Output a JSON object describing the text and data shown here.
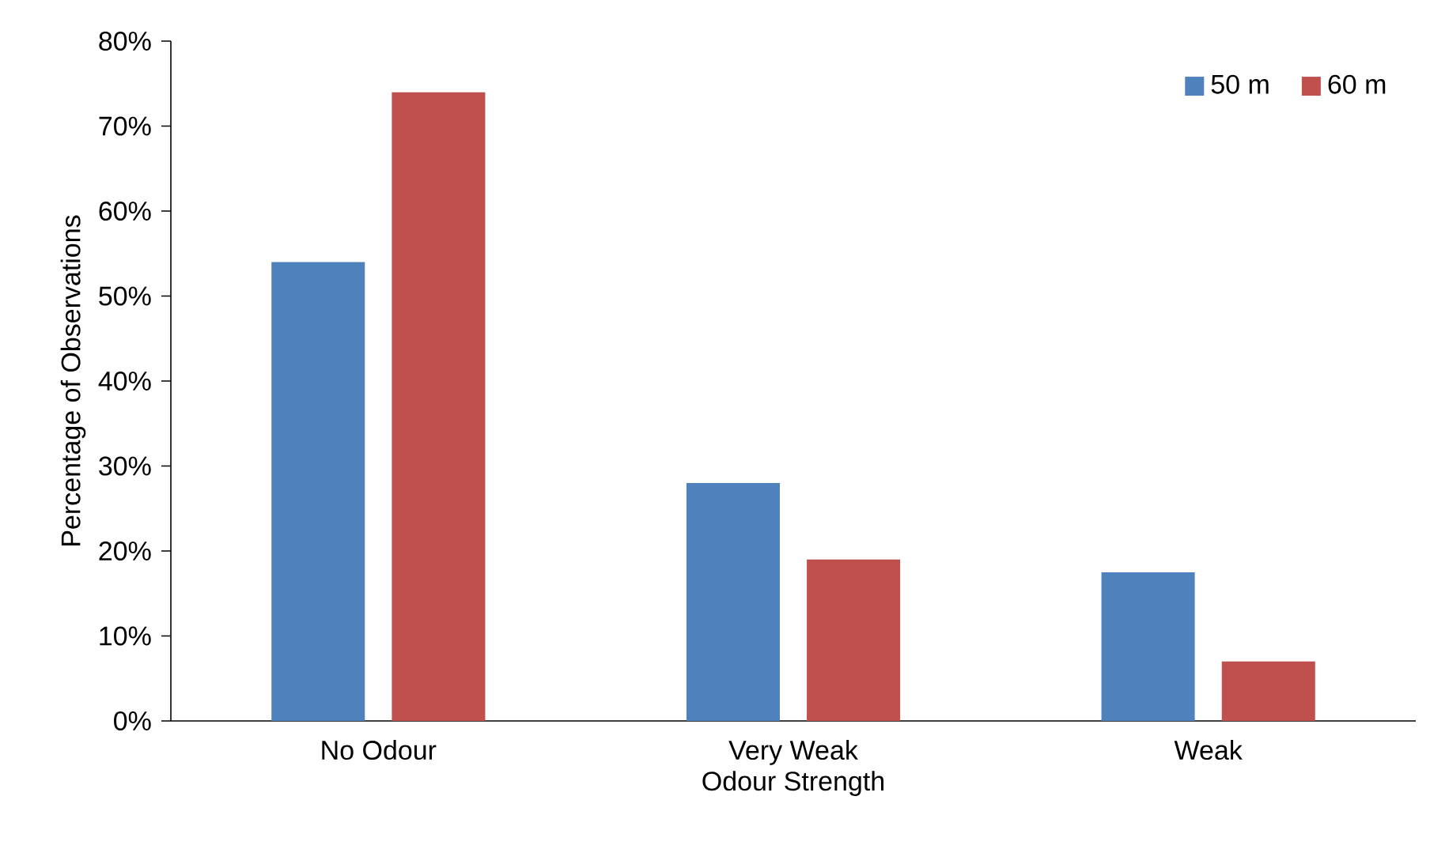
{
  "chart_data": {
    "type": "bar",
    "xlabel": "Odour Strength",
    "ylabel": "Percentage of Observations",
    "categories": [
      "No Odour",
      "Very Weak",
      "Weak"
    ],
    "series": [
      {
        "name": "50 m",
        "color": "#4f81bd",
        "values": [
          54,
          28,
          17.5
        ]
      },
      {
        "name": "60 m",
        "color": "#c0504d",
        "values": [
          74,
          19,
          7
        ]
      }
    ],
    "ylim": [
      0,
      80
    ],
    "yticks": [
      {
        "value": 0,
        "label": "0%"
      },
      {
        "value": 10,
        "label": "10%"
      },
      {
        "value": 20,
        "label": "20%"
      },
      {
        "value": 30,
        "label": "30%"
      },
      {
        "value": 40,
        "label": "40%"
      },
      {
        "value": 50,
        "label": "50%"
      },
      {
        "value": 60,
        "label": "60%"
      },
      {
        "value": 70,
        "label": "70%"
      },
      {
        "value": 80,
        "label": "80%"
      }
    ],
    "legend": "top right"
  }
}
